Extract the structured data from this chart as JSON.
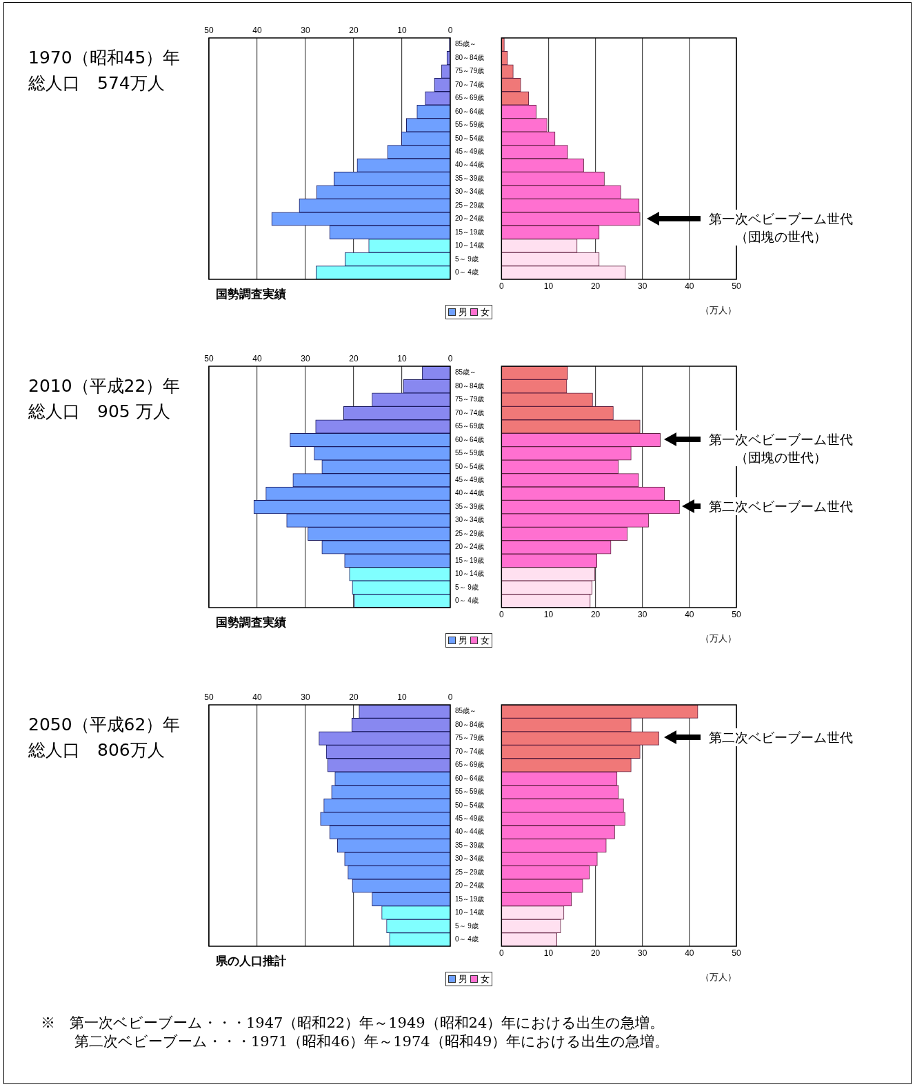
{
  "chart_data": [
    {
      "type": "bar",
      "orientation": "horizontal",
      "title": "1970（昭和45）年",
      "subtitle": "総人口　574万人",
      "categories": [
        "85歳～",
        "80～84歳",
        "75～79歳",
        "70～74歳",
        "65～69歳",
        "60～64歳",
        "55～59歳",
        "50～54歳",
        "45～49歳",
        "40～44歳",
        "35～39歳",
        "30～34歳",
        "25～29歳",
        "20～24歳",
        "15～19歳",
        "10～14歳",
        "5～ 9歳",
        "0～ 4歳"
      ],
      "series": [
        {
          "name": "男",
          "color": "#6fa0ff",
          "values": [
            0.2,
            0.7,
            1.8,
            3.3,
            5.2,
            6.9,
            9.1,
            10.1,
            13.0,
            19.3,
            24.1,
            27.7,
            31.3,
            37.0,
            25.0,
            16.9,
            21.8,
            27.8
          ],
          "colors": [
            "#8888f0",
            "#8888f0",
            "#8888f0",
            "#8888f0",
            "#8888f0",
            "#6fa0ff",
            "#6fa0ff",
            "#6fa0ff",
            "#6fa0ff",
            "#6fa0ff",
            "#6fa0ff",
            "#6fa0ff",
            "#6fa0ff",
            "#6fa0ff",
            "#6fa0ff",
            "#80ffff",
            "#80ffff",
            "#80ffff"
          ]
        }
      ],
      "xlim": [
        50,
        0
      ],
      "xticks": [
        50,
        40,
        30,
        20,
        10,
        0
      ],
      "grid": "x",
      "legend": "bottom",
      "annotations": [
        "国勢調査実績"
      ]
    },
    {
      "type": "bar",
      "orientation": "horizontal",
      "categories": [
        null,
        null,
        null,
        null,
        null,
        null,
        null,
        null,
        null,
        null,
        null,
        null,
        null,
        null,
        null,
        null,
        null,
        null
      ],
      "tick_labels": "x",
      "series": [
        {
          "name": "女",
          "color": "#ff70d0",
          "values": [
            0.6,
            1.3,
            2.5,
            4.1,
            5.8,
            7.4,
            9.7,
            11.4,
            14.1,
            17.5,
            21.9,
            25.4,
            29.3,
            29.5,
            20.8,
            16.1,
            20.8,
            26.4
          ],
          "colors": [
            "#f07878",
            "#f07878",
            "#f07878",
            "#f07878",
            "#f07878",
            "#ff70d0",
            "#ff70d0",
            "#ff70d0",
            "#ff70d0",
            "#ff70d0",
            "#ff70d0",
            "#ff70d0",
            "#ff70d0",
            "#ff70d0",
            "#ff70d0",
            "#ffe0f0",
            "#ffe0f0",
            "#ffe0f0"
          ]
        }
      ],
      "xlim": [
        0,
        50
      ],
      "xticks": [
        0,
        10,
        20,
        30,
        40,
        50
      ],
      "grid": "x",
      "legend": "bottom",
      "xlabel": "（万人）",
      "annotations": [
        "第一次ベビーブーム世代（団塊の世代）"
      ]
    },
    {
      "type": "bar",
      "orientation": "horizontal",
      "title": "2010（平成22）年",
      "subtitle": "総人口　905 万人",
      "categories": [
        "85歳～",
        "80～84歳",
        "75～79歳",
        "70～74歳",
        "65～69歳",
        "60～64歳",
        "55～59歳",
        "50～54歳",
        "45～49歳",
        "40～44歳",
        "35～39歳",
        "30～34歳",
        "25～29歳",
        "20～24歳",
        "15～19歳",
        "10～14歳",
        "5～ 9歳",
        "0～ 4歳"
      ],
      "series": [
        {
          "name": "男",
          "color": "#6fa0ff",
          "values": [
            5.8,
            9.7,
            16.2,
            22.1,
            27.9,
            33.2,
            28.2,
            26.6,
            32.6,
            38.2,
            40.7,
            33.9,
            29.5,
            26.6,
            21.9,
            20.9,
            20.3,
            19.9
          ],
          "colors": [
            "#8888f0",
            "#8888f0",
            "#8888f0",
            "#8888f0",
            "#8888f0",
            "#6fa0ff",
            "#6fa0ff",
            "#6fa0ff",
            "#6fa0ff",
            "#6fa0ff",
            "#6fa0ff",
            "#6fa0ff",
            "#6fa0ff",
            "#6fa0ff",
            "#6fa0ff",
            "#80ffff",
            "#80ffff",
            "#80ffff"
          ]
        }
      ],
      "xlim": [
        50,
        0
      ],
      "xticks": [
        50,
        40,
        30,
        20,
        10,
        0
      ],
      "grid": "x",
      "legend": "bottom",
      "annotations": [
        "国勢調査実績"
      ]
    },
    {
      "type": "bar",
      "orientation": "horizontal",
      "categories": [
        null,
        null,
        null,
        null,
        null,
        null,
        null,
        null,
        null,
        null,
        null,
        null,
        null,
        null,
        null,
        null,
        null,
        null
      ],
      "tick_labels": "x",
      "series": [
        {
          "name": "女",
          "color": "#ff70d0",
          "values": [
            14.1,
            13.9,
            19.4,
            23.8,
            29.5,
            33.8,
            27.6,
            24.9,
            29.2,
            34.7,
            37.9,
            31.3,
            26.8,
            23.3,
            20.3,
            19.9,
            19.3,
            18.9
          ],
          "colors": [
            "#f07878",
            "#f07878",
            "#f07878",
            "#f07878",
            "#f07878",
            "#ff70d0",
            "#ff70d0",
            "#ff70d0",
            "#ff70d0",
            "#ff70d0",
            "#ff70d0",
            "#ff70d0",
            "#ff70d0",
            "#ff70d0",
            "#ff70d0",
            "#ffe0f0",
            "#ffe0f0",
            "#ffe0f0"
          ]
        }
      ],
      "xlim": [
        0,
        50
      ],
      "xticks": [
        0,
        10,
        20,
        30,
        40,
        50
      ],
      "grid": "x",
      "legend": "bottom",
      "xlabel": "（万人）",
      "annotations": [
        "第一次ベビーブーム世代（団塊の世代）",
        "第二次ベビーブーム世代"
      ]
    },
    {
      "type": "bar",
      "orientation": "horizontal",
      "title": "2050（平成62）年",
      "subtitle": "総人口　806万人",
      "categories": [
        "85歳～",
        "80～84歳",
        "75～79歳",
        "70～74歳",
        "65～69歳",
        "60～64歳",
        "55～59歳",
        "50～54歳",
        "45～49歳",
        "40～44歳",
        "35～39歳",
        "30～34歳",
        "25～29歳",
        "20～24歳",
        "15～19歳",
        "10～14歳",
        "5～ 9歳",
        "0～ 4歳"
      ],
      "series": [
        {
          "name": "男",
          "color": "#6fa0ff",
          "values": [
            18.9,
            20.4,
            27.2,
            25.7,
            25.4,
            23.9,
            24.6,
            26.2,
            26.9,
            25.0,
            23.4,
            21.9,
            21.2,
            20.3,
            16.2,
            14.2,
            13.2,
            12.6
          ],
          "colors": [
            "#8888f0",
            "#8888f0",
            "#8888f0",
            "#8888f0",
            "#8888f0",
            "#6fa0ff",
            "#6fa0ff",
            "#6fa0ff",
            "#6fa0ff",
            "#6fa0ff",
            "#6fa0ff",
            "#6fa0ff",
            "#6fa0ff",
            "#6fa0ff",
            "#6fa0ff",
            "#80ffff",
            "#80ffff",
            "#80ffff"
          ]
        }
      ],
      "xlim": [
        50,
        0
      ],
      "xticks": [
        50,
        40,
        30,
        20,
        10,
        0
      ],
      "grid": "x",
      "legend": "bottom",
      "annotations": [
        "県の人口推計",
        "※　第一次ベビーブーム・・・1947（昭和22）年～1949（昭和24）年における出生の急増。",
        "第二次ベビーブーム・・・1971（昭和46）年～1974（昭和49）年における出生の急増。"
      ]
    },
    {
      "type": "bar",
      "orientation": "horizontal",
      "categories": [
        null,
        null,
        null,
        null,
        null,
        null,
        null,
        null,
        null,
        null,
        null,
        null,
        null,
        null,
        null,
        null,
        null,
        null
      ],
      "tick_labels": "x",
      "series": [
        {
          "name": "女",
          "color": "#ff70d0",
          "values": [
            41.8,
            27.6,
            33.5,
            29.5,
            27.6,
            24.6,
            24.9,
            26.0,
            26.3,
            24.1,
            22.3,
            20.4,
            18.7,
            17.3,
            14.9,
            13.3,
            12.6,
            11.8
          ],
          "colors": [
            "#f07878",
            "#f07878",
            "#f07878",
            "#f07878",
            "#f07878",
            "#ff70d0",
            "#ff70d0",
            "#ff70d0",
            "#ff70d0",
            "#ff70d0",
            "#ff70d0",
            "#ff70d0",
            "#ff70d0",
            "#ff70d0",
            "#ff70d0",
            "#ffe0f0",
            "#ffe0f0",
            "#ffe0f0"
          ]
        }
      ],
      "xlim": [
        0,
        50
      ],
      "xticks": [
        0,
        10,
        20,
        30,
        40,
        50
      ],
      "grid": "x",
      "legend": "bottom",
      "xlabel": "（万人）",
      "annotations": [
        "第二次ベビーブーム世代"
      ]
    }
  ]
}
